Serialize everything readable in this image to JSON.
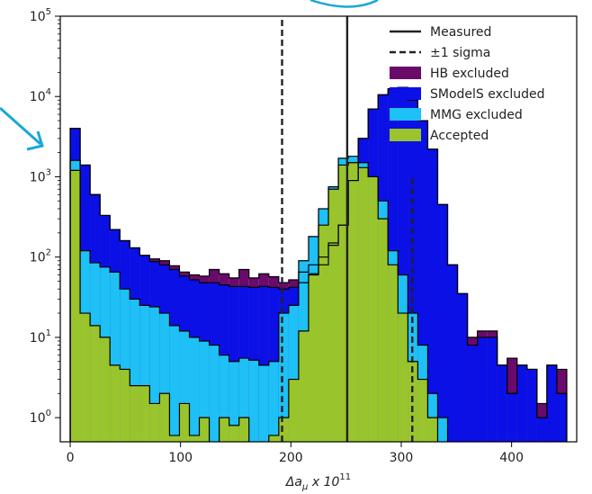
{
  "chart_data": {
    "type": "histogram",
    "title": "",
    "xlabel": "Δa",
    "xlabel_subscript": "μ",
    "xlabel_suffix": " x 10",
    "xlabel_superscript": "11",
    "x_range": [
      -9,
      459
    ],
    "y_scale": "log",
    "y_range": [
      0.5,
      100000
    ],
    "x_ticks": [
      0,
      100,
      200,
      300,
      400
    ],
    "y_tick_exponents": [
      0,
      1,
      2,
      3,
      4,
      5
    ],
    "y_tick_base": "10",
    "bin_start": 0,
    "bin_width": 9,
    "legend_position": "upper right",
    "reference_lines": [
      {
        "name": "Measured",
        "style": "solid",
        "x": 251
      },
      {
        "name": "±1 sigma",
        "style": "dashed",
        "x": [
          192,
          310
        ],
        "ymax": [
          100000,
          1000
        ]
      }
    ],
    "series": [
      {
        "name": "HB excluded",
        "color": "#6a0a6a",
        "values": [
          4000,
          1400,
          600,
          330,
          220,
          160,
          130,
          105,
          95,
          90,
          78,
          65,
          60,
          58,
          70,
          62,
          55,
          70,
          55,
          62,
          57,
          48,
          52,
          65,
          80,
          100,
          150,
          250,
          900,
          3000,
          7000,
          10500,
          12500,
          13000,
          9000,
          5000,
          2200,
          450,
          80,
          35,
          10,
          12,
          12,
          4.5,
          5.5,
          4.5,
          4,
          1.5,
          4.5,
          4
        ]
      },
      {
        "name": "SModelS excluded",
        "color": "#0a10e6",
        "values": [
          4000,
          1400,
          600,
          330,
          220,
          160,
          130,
          105,
          88,
          80,
          70,
          58,
          52,
          48,
          48,
          45,
          43,
          43,
          42,
          43,
          42,
          40,
          42,
          48,
          62,
          80,
          140,
          250,
          900,
          3000,
          7000,
          10500,
          12000,
          13000,
          9000,
          5000,
          2200,
          450,
          80,
          35,
          8,
          10,
          10,
          4.5,
          2,
          4.5,
          4,
          1,
          4.5,
          2
        ]
      },
      {
        "name": "MMG excluded",
        "color": "#1ec0f5",
        "values": [
          1600,
          120,
          85,
          75,
          65,
          40,
          30,
          25,
          24,
          20,
          14,
          12,
          10,
          9,
          8,
          6,
          5,
          5.5,
          5.2,
          4.5,
          5,
          20,
          25,
          90,
          180,
          400,
          750,
          1700,
          1800,
          1500,
          1000,
          500,
          120,
          60,
          20,
          8,
          2,
          1,
          0,
          0,
          0,
          0,
          0,
          0,
          0,
          0,
          0,
          0,
          0,
          0
        ]
      },
      {
        "name": "Accepted",
        "color": "#9ac42c",
        "values": [
          1200,
          20,
          14,
          10,
          4.5,
          4,
          2.5,
          2.5,
          1.5,
          2,
          0.6,
          1.5,
          0.6,
          1,
          0,
          1,
          0.8,
          1,
          0,
          0,
          0.6,
          1,
          3,
          12,
          60,
          250,
          700,
          1400,
          1500,
          1300,
          1000,
          300,
          80,
          20,
          5,
          3,
          1,
          0,
          0,
          0,
          0,
          0,
          0,
          0,
          0,
          0,
          0,
          0,
          0,
          0
        ]
      }
    ]
  },
  "colors": {
    "annotation_arrow": "#1aa7d6",
    "axis": "#000000"
  }
}
